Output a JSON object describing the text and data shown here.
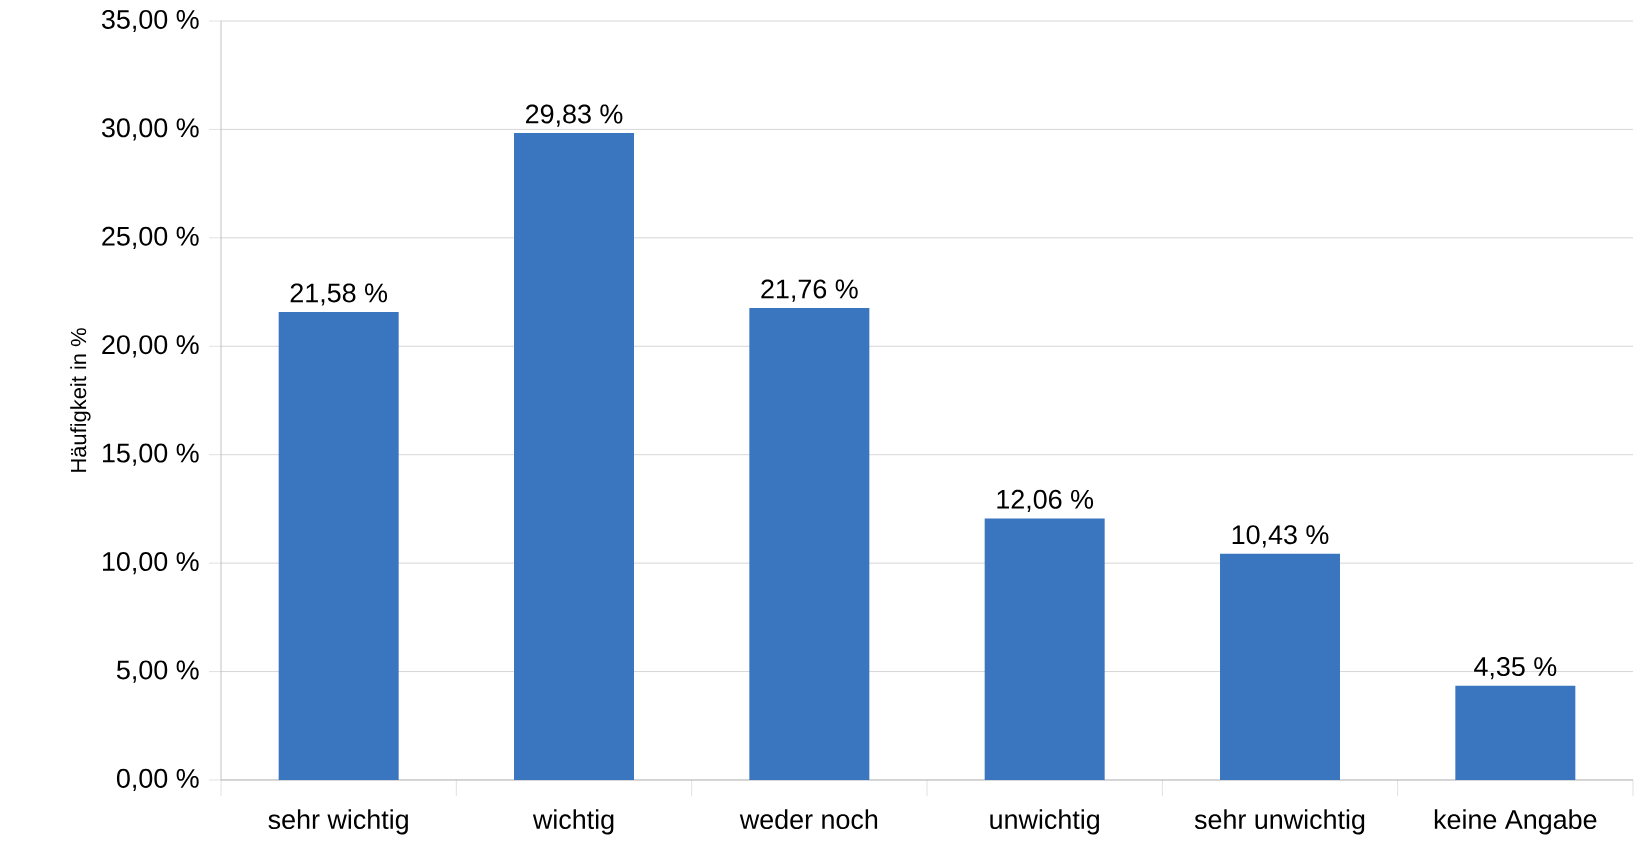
{
  "chart_data": {
    "type": "bar",
    "ylabel": "Häufigkeit in %",
    "categories": [
      "sehr wichtig",
      "wichtig",
      "weder noch",
      "unwichtig",
      "sehr unwichtig",
      "keine Angabe"
    ],
    "values": [
      21.58,
      29.83,
      21.76,
      12.06,
      10.43,
      4.35
    ],
    "value_labels": [
      "21,58 %",
      "29,83 %",
      "21,76 %",
      "12,06 %",
      "10,43 %",
      "4,35 %"
    ],
    "color": "#3a75bf",
    "ylim": [
      0,
      35
    ],
    "yticks": [
      {
        "value": 0,
        "label": "0,00 %"
      },
      {
        "value": 5,
        "label": "5,00 %"
      },
      {
        "value": 10,
        "label": "10,00 %"
      },
      {
        "value": 15,
        "label": "15,00 %"
      },
      {
        "value": 20,
        "label": "20,00 %"
      },
      {
        "value": 25,
        "label": "25,00 %"
      },
      {
        "value": 30,
        "label": "30,00 %"
      },
      {
        "value": 35,
        "label": "35,00 %"
      }
    ],
    "grid": "y"
  }
}
